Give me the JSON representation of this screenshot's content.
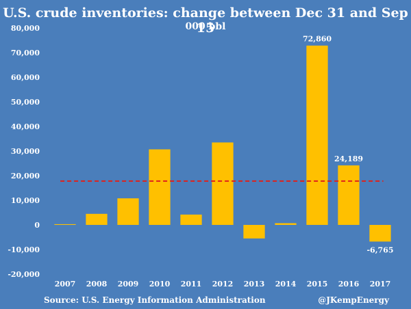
{
  "chart_data": {
    "type": "bar",
    "title": "U.S. crude inventories: change between Dec 31 and Sep 15",
    "subtitle": "000 bbl",
    "categories": [
      "2007",
      "2008",
      "2009",
      "2010",
      "2011",
      "2012",
      "2013",
      "2014",
      "2015",
      "2016",
      "2017"
    ],
    "values": [
      300,
      4500,
      10800,
      30700,
      4200,
      33500,
      -5500,
      700,
      72860,
      24189,
      -6765
    ],
    "data_labels": {
      "8": "72,860",
      "9": "24,189",
      "10": "-6,765"
    },
    "ylim": [
      -20000,
      80000
    ],
    "yticks": [
      {
        "value": 80000,
        "label": "80,000"
      },
      {
        "value": 70000,
        "label": "70,000"
      },
      {
        "value": 60000,
        "label": "60,000"
      },
      {
        "value": 50000,
        "label": "50,000"
      },
      {
        "value": 40000,
        "label": "40,000"
      },
      {
        "value": 30000,
        "label": "30,000"
      },
      {
        "value": 20000,
        "label": "20,000"
      },
      {
        "value": 10000,
        "label": "10,000"
      },
      {
        "value": 0,
        "label": "0"
      },
      {
        "value": -10000,
        "label": "-10,000"
      },
      {
        "value": -20000,
        "label": "-20,000"
      }
    ],
    "average_line": 17800,
    "grid": false,
    "colors": {
      "bar": "#ffc000",
      "average_line": "#e0201b",
      "background": "#4a7ebb",
      "text": "#ffffff"
    }
  },
  "footer": {
    "source": "Source: U.S. Energy Information Administration",
    "handle": "@JKempEnergy"
  }
}
